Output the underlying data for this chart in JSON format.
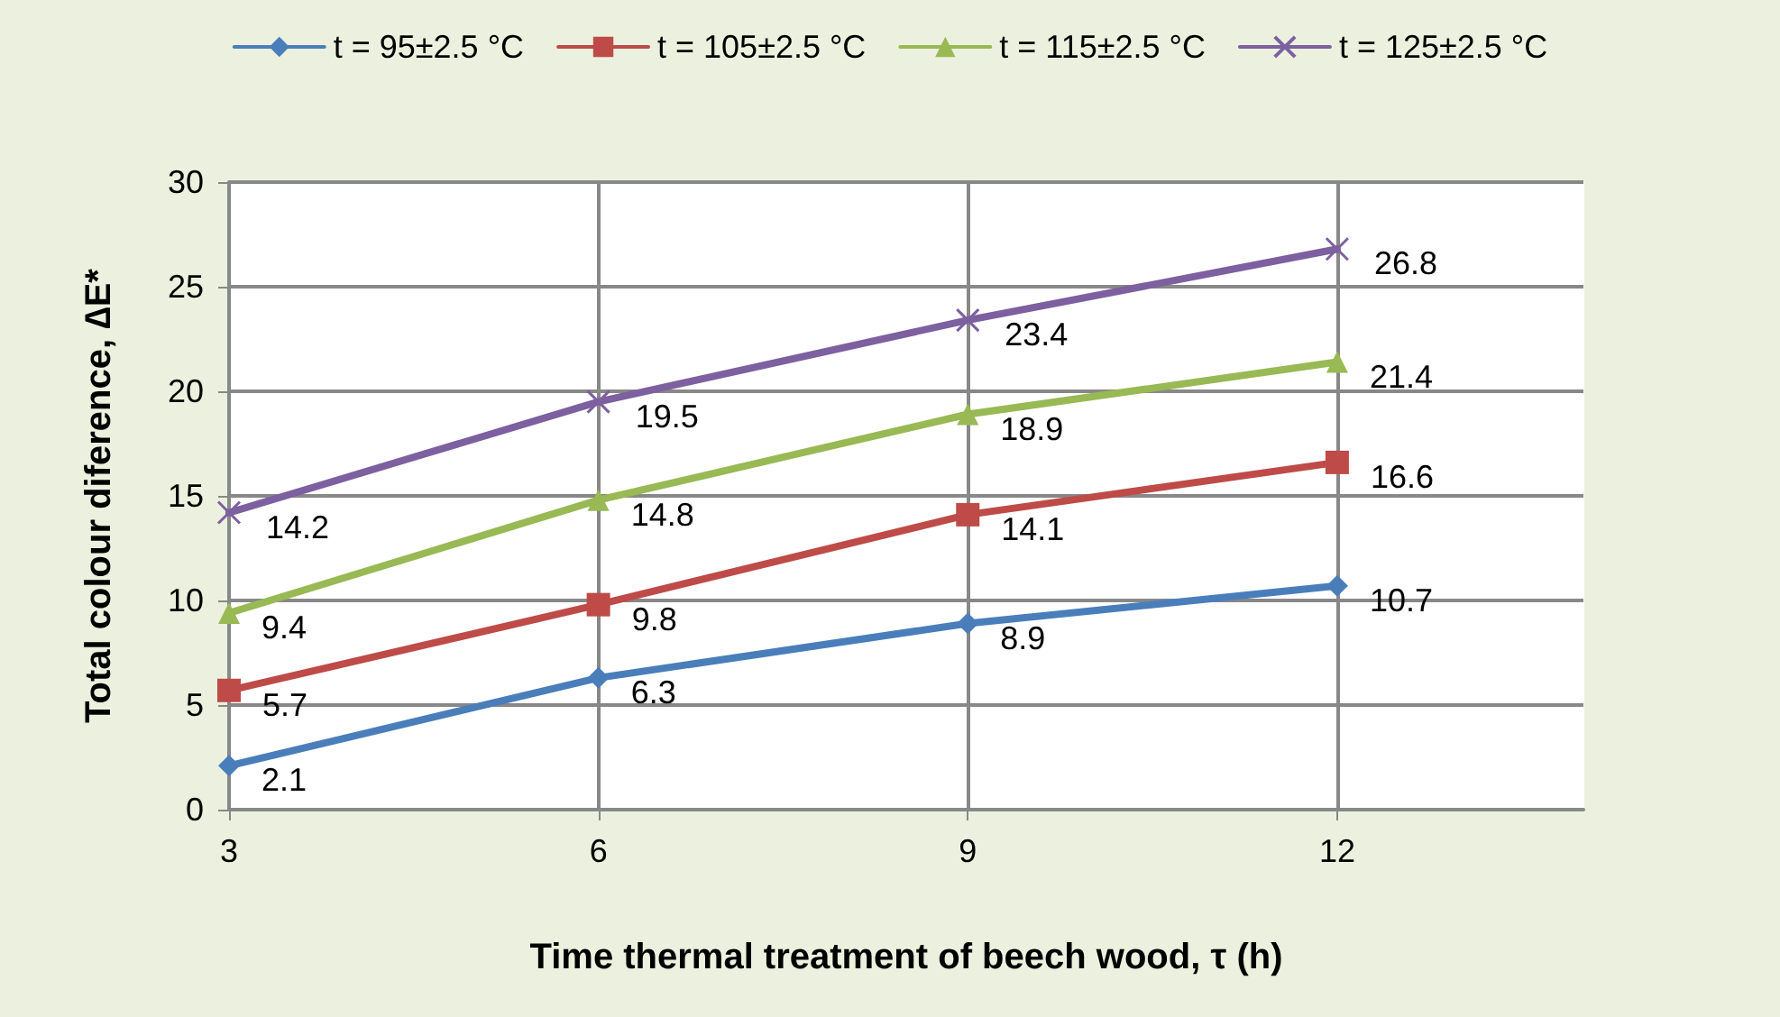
{
  "chart_data": {
    "type": "line",
    "xlabel": "Time thermal treatment of beech wood, τ (h)",
    "ylabel": "Total colour diference, ∆E*",
    "x": [
      3,
      6,
      9,
      12
    ],
    "xlim": [
      3,
      14
    ],
    "xticks": [
      3,
      6,
      9,
      12
    ],
    "ylim": [
      0,
      30
    ],
    "yticks": [
      0,
      5,
      10,
      15,
      20,
      25,
      30
    ],
    "grid": true,
    "legend": "top",
    "data_labels": true,
    "series": [
      {
        "name": "t = 95±2.5 °C",
        "color": "#4a7ebb",
        "marker": "diamond",
        "values": [
          2.1,
          6.3,
          8.9,
          10.7
        ]
      },
      {
        "name": "t = 105±2.5 °C",
        "color": "#be4b48",
        "marker": "square",
        "values": [
          5.7,
          9.8,
          14.1,
          16.6
        ]
      },
      {
        "name": "t = 115±2.5 °C",
        "color": "#98b954",
        "marker": "triangle",
        "values": [
          9.4,
          14.8,
          18.9,
          21.4
        ]
      },
      {
        "name": "t = 125±2.5 °C",
        "color": "#7d60a0",
        "marker": "cross",
        "values": [
          14.2,
          19.5,
          23.4,
          26.8
        ]
      }
    ]
  }
}
